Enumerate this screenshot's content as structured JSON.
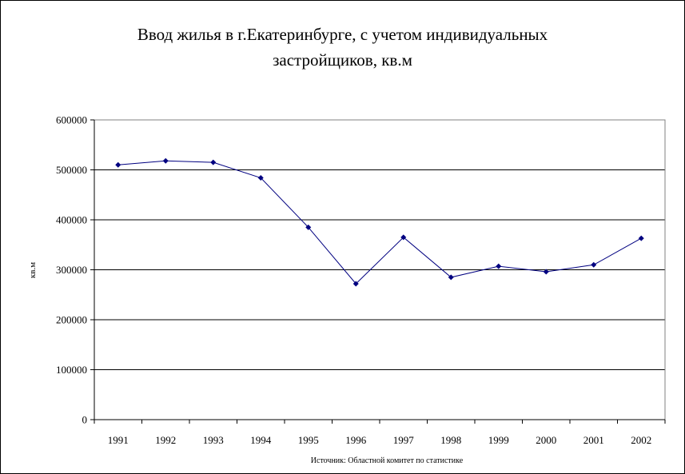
{
  "chart_data": {
    "type": "line",
    "title_line1": "Ввод жилья в г.Екатеринбурге, с учетом индивидуальных",
    "title_line2": "застройщиков, кв.м",
    "xlabel": "",
    "ylabel": "кв.м",
    "source": "Источник: Областной комитет по статистике",
    "categories": [
      "1991",
      "1992",
      "1993",
      "1994",
      "1995",
      "1996",
      "1997",
      "1998",
      "1999",
      "2000",
      "2001",
      "2002"
    ],
    "values": [
      510000,
      518000,
      515000,
      484000,
      385000,
      272000,
      365000,
      285000,
      307000,
      296000,
      310000,
      363000
    ],
    "ylim": [
      0,
      600000
    ],
    "yticks": [
      0,
      100000,
      200000,
      300000,
      400000,
      500000,
      600000
    ],
    "grid": true,
    "colors": {
      "line": "#000080",
      "marker": "#000080",
      "grid": "#000000"
    }
  }
}
